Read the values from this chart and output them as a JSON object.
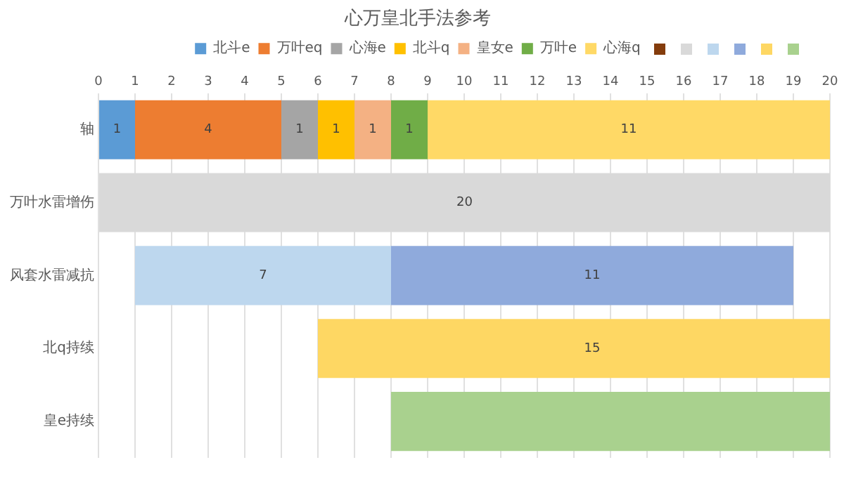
{
  "chart_data": {
    "type": "bar",
    "orientation": "horizontal",
    "stacked": true,
    "title": "心万皇北手法参考",
    "categories": [
      "轴",
      "万叶水雷增伤",
      "风套水雷减抗",
      "北q持续",
      "皇e持续"
    ],
    "xlim": [
      0,
      20
    ],
    "xticks": [
      0,
      1,
      2,
      3,
      4,
      5,
      6,
      7,
      8,
      9,
      10,
      11,
      12,
      13,
      14,
      15,
      16,
      17,
      18,
      19,
      20
    ],
    "grid": "x",
    "legend": "top",
    "series": [
      {
        "name": "北斗e",
        "color": "#5b9bd5",
        "values": [
          1,
          null,
          null,
          null,
          null
        ],
        "value_labels": [
          "1",
          null,
          null,
          null,
          null
        ]
      },
      {
        "name": "万叶eq",
        "color": "#ed7d31",
        "values": [
          4,
          null,
          null,
          null,
          null
        ],
        "value_labels": [
          "4",
          null,
          null,
          null,
          null
        ]
      },
      {
        "name": "心海e",
        "color": "#a5a5a5",
        "values": [
          1,
          null,
          null,
          null,
          null
        ],
        "value_labels": [
          "1",
          null,
          null,
          null,
          null
        ]
      },
      {
        "name": "北斗q",
        "color": "#ffc000",
        "values": [
          1,
          null,
          null,
          null,
          null
        ],
        "value_labels": [
          "1",
          null,
          null,
          null,
          null
        ]
      },
      {
        "name": "皇女e",
        "color": "#f4b183",
        "values": [
          1,
          null,
          null,
          null,
          null
        ],
        "value_labels": [
          "1",
          null,
          null,
          null,
          null
        ]
      },
      {
        "name": "万叶e",
        "color": "#70ad47",
        "values": [
          1,
          null,
          null,
          null,
          null
        ],
        "value_labels": [
          "1",
          null,
          null,
          null,
          null
        ]
      },
      {
        "name": "心海q",
        "color": "#ffd966",
        "values": [
          11,
          null,
          null,
          null,
          null
        ],
        "value_labels": [
          "11",
          null,
          null,
          null,
          null
        ]
      },
      {
        "color": "#843c0c",
        "values": [
          null,
          null,
          null,
          null,
          null
        ]
      },
      {
        "color": "#d9d9d9",
        "values": [
          null,
          20,
          null,
          null,
          null
        ],
        "value_labels": [
          null,
          "20",
          null,
          null,
          null
        ]
      },
      {
        "color": "#bdd7ee",
        "values": [
          null,
          null,
          7,
          null,
          null
        ],
        "base": [
          null,
          null,
          1,
          null,
          null
        ],
        "value_labels": [
          null,
          null,
          "7",
          null,
          null
        ]
      },
      {
        "color": "#8faadc",
        "values": [
          null,
          null,
          11,
          null,
          null
        ],
        "base": [
          null,
          null,
          8,
          null,
          null
        ],
        "value_labels": [
          null,
          null,
          "11",
          null,
          null
        ]
      },
      {
        "color": "#fed763",
        "values": [
          null,
          null,
          null,
          15,
          null
        ],
        "base": [
          null,
          null,
          null,
          6,
          null
        ],
        "value_labels": [
          null,
          null,
          null,
          "15",
          null
        ]
      },
      {
        "color": "#a9d18e",
        "values": [
          null,
          null,
          null,
          null,
          12
        ],
        "base": [
          null,
          null,
          null,
          null,
          8
        ],
        "value_labels": [
          null,
          null,
          null,
          null,
          null
        ]
      }
    ]
  }
}
